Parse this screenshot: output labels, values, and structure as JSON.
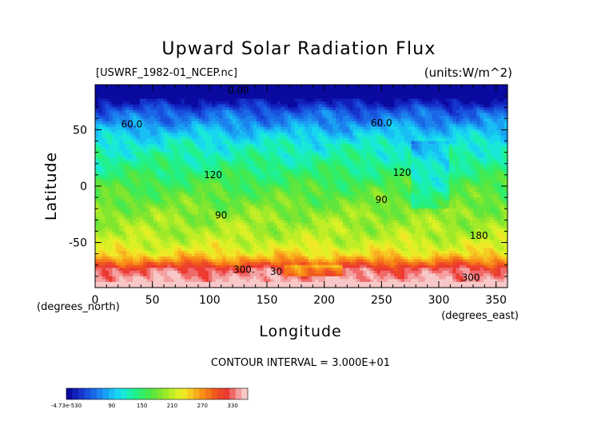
{
  "chart_data": {
    "type": "heatmap",
    "title": "Upward Solar Radiation Flux",
    "source_label": "[USWRF_1982-01_NCEP.nc]",
    "units_label": "(units:W/m^2)",
    "xlabel": "Longitude",
    "ylabel": "Latitude",
    "x_unit_label": "(degrees_east)",
    "y_unit_label": "(degrees_north)",
    "xlim": [
      0,
      360
    ],
    "ylim": [
      -90,
      90
    ],
    "x_ticks": [
      0,
      50,
      100,
      150,
      200,
      250,
      300,
      350
    ],
    "y_ticks": [
      50,
      0,
      -50
    ],
    "contour_interval_label": "CONTOUR INTERVAL = 3.000E+01",
    "contour_labels": [
      {
        "text": "0.00",
        "lon": 125,
        "lat": 85
      },
      {
        "text": "60.0",
        "lon": 32,
        "lat": 55
      },
      {
        "text": "60.0",
        "lon": 250,
        "lat": 56
      },
      {
        "text": "120",
        "lon": 103,
        "lat": 10
      },
      {
        "text": "120",
        "lon": 268,
        "lat": 12
      },
      {
        "text": "90",
        "lon": 110,
        "lat": -26
      },
      {
        "text": "90",
        "lon": 250,
        "lat": -12
      },
      {
        "text": "180",
        "lon": 335,
        "lat": -44
      },
      {
        "text": "300.",
        "lon": 130,
        "lat": -74
      },
      {
        "text": "30",
        "lon": 158,
        "lat": -76
      },
      {
        "text": "300",
        "lon": 328,
        "lat": -81
      }
    ],
    "lat_profile": [
      {
        "lat": 90,
        "value": 0
      },
      {
        "lat": 80,
        "value": 0
      },
      {
        "lat": 74,
        "value": 15
      },
      {
        "lat": 66,
        "value": 45
      },
      {
        "lat": 58,
        "value": 60
      },
      {
        "lat": 48,
        "value": 85
      },
      {
        "lat": 38,
        "value": 105
      },
      {
        "lat": 25,
        "value": 120
      },
      {
        "lat": 12,
        "value": 135
      },
      {
        "lat": 0,
        "value": 150
      },
      {
        "lat": -15,
        "value": 165
      },
      {
        "lat": -30,
        "value": 180
      },
      {
        "lat": -45,
        "value": 190
      },
      {
        "lat": -55,
        "value": 205
      },
      {
        "lat": -62,
        "value": 225
      },
      {
        "lat": -68,
        "value": 260
      },
      {
        "lat": -74,
        "value": 300
      },
      {
        "lat": -82,
        "value": 315
      },
      {
        "lat": -90,
        "value": 330
      }
    ],
    "colorbar": {
      "tick_labels": [
        "-4.73e-530",
        "90",
        "150",
        "210",
        "270",
        "330"
      ],
      "colors": [
        "#0a0aa0",
        "#1020b8",
        "#1535cc",
        "#1850dc",
        "#1a68e6",
        "#1c82ee",
        "#1aa0f2",
        "#18bef4",
        "#18d6f0",
        "#1ae8d8",
        "#1cf0b0",
        "#22f08a",
        "#30ee6a",
        "#44ea50",
        "#60e63c",
        "#80e630",
        "#a0ea2a",
        "#c0ee26",
        "#dcf026",
        "#f0e826",
        "#f6cc22",
        "#f8ae1e",
        "#f89018",
        "#f6761a",
        "#f05a1e",
        "#ec4628",
        "#ec3a30",
        "#f06a6a",
        "#f4a0a0",
        "#f8c8c8"
      ]
    },
    "legend": "bottom-left",
    "grid": false
  }
}
